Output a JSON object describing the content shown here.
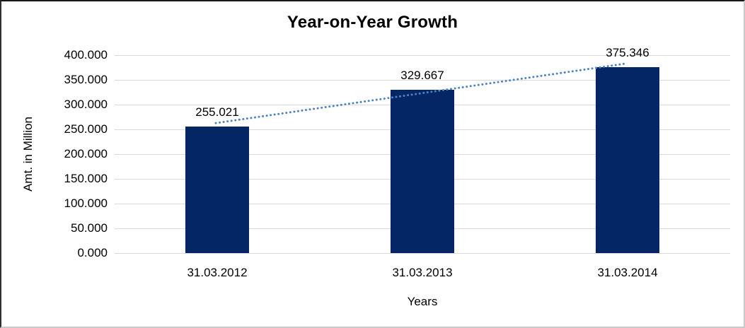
{
  "chart_data": {
    "type": "bar",
    "title": "Year-on-Year Growth",
    "xlabel": "Years",
    "ylabel": "Amt. in Million",
    "categories": [
      "31.03.2012",
      "31.03.2013",
      "31.03.2014"
    ],
    "values": [
      255.021,
      329.667,
      375.346
    ],
    "data_labels": [
      "255.021",
      "329.667",
      "375.346"
    ],
    "y_tick_values": [
      0,
      50,
      100,
      150,
      200,
      250,
      300,
      350,
      400
    ],
    "y_tick_labels": [
      "0.000",
      "50.000",
      "100.000",
      "150.000",
      "200.000",
      "250.000",
      "300.000",
      "350.000",
      "400.000"
    ],
    "ylim": [
      0,
      400
    ],
    "grid": true,
    "legend": "none",
    "trendline": {
      "type": "linear",
      "style": "dotted"
    },
    "colors": {
      "bar": "#052665",
      "trendline": "#4e82c4",
      "gridline": "#d9d9d9",
      "text": "#000000",
      "background": "#ffffff"
    }
  }
}
